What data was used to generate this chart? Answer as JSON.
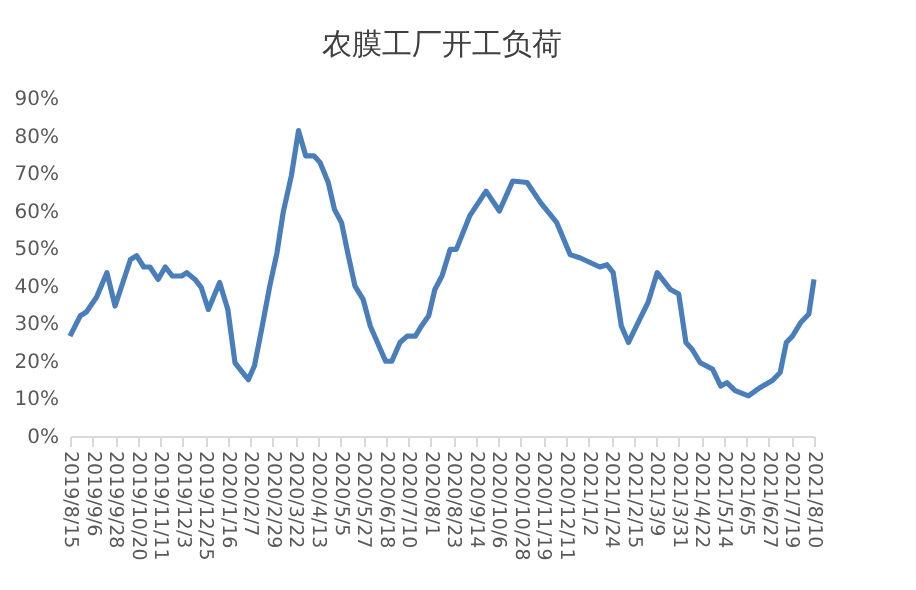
{
  "chart_data": {
    "type": "line",
    "title": "农膜工厂开工负荷",
    "x": [
      "2019-08-15",
      "2019-08-25",
      "2019-08-31",
      "2019-09-10",
      "2019-09-20",
      "2019-09-28",
      "2019-10-13",
      "2019-10-19",
      "2019-10-26",
      "2019-11-01",
      "2019-11-09",
      "2019-11-16",
      "2019-11-23",
      "2019-12-02",
      "2019-12-07",
      "2019-12-15",
      "2019-12-21",
      "2019-12-28",
      "2020-01-08",
      "2020-01-16",
      "2020-01-23",
      "2020-02-05",
      "2020-02-11",
      "2020-02-18",
      "2020-02-26",
      "2020-03-04",
      "2020-03-10",
      "2020-03-18",
      "2020-03-25",
      "2020-04-01",
      "2020-04-09",
      "2020-04-15",
      "2020-04-23",
      "2020-04-29",
      "2020-05-06",
      "2020-05-12",
      "2020-05-19",
      "2020-05-27",
      "2020-06-03",
      "2020-06-18",
      "2020-06-24",
      "2020-07-02",
      "2020-07-09",
      "2020-07-17",
      "2020-07-23",
      "2020-07-30",
      "2020-08-05",
      "2020-08-12",
      "2020-08-20",
      "2020-08-26",
      "2020-09-08",
      "2020-09-24",
      "2020-10-07",
      "2020-10-20",
      "2020-11-03",
      "2020-11-16",
      "2020-12-02",
      "2020-12-15",
      "2020-12-25",
      "2021-01-13",
      "2021-01-20",
      "2021-01-26",
      "2021-02-03",
      "2021-02-10",
      "2021-02-21",
      "2021-03-01",
      "2021-03-10",
      "2021-03-23",
      "2021-03-31",
      "2021-04-07",
      "2021-04-13",
      "2021-04-21",
      "2021-05-03",
      "2021-05-11",
      "2021-05-17",
      "2021-05-25",
      "2021-06-07",
      "2021-06-19",
      "2021-06-30",
      "2021-07-08",
      "2021-07-14",
      "2021-07-20",
      "2021-07-28",
      "2021-08-05",
      "2021-08-10"
    ],
    "series": [
      {
        "color": "#4a7ebb",
        "values": [
          26.6,
          32,
          33,
          37,
          43.5,
          34.6,
          47,
          48,
          45,
          45,
          41.7,
          45,
          42.6,
          42.6,
          43.5,
          41.7,
          39.6,
          33.7,
          40.9,
          33.7,
          19.5,
          15,
          18.7,
          28.4,
          40,
          48.8,
          59.5,
          69.3,
          81.3,
          74.6,
          74.6,
          72.8,
          67.5,
          60.4,
          56.8,
          48.8,
          40,
          36.4,
          29.3,
          19.9,
          19.9,
          24.9,
          26.6,
          26.6,
          29.3,
          32,
          39,
          42.6,
          49.7,
          49.7,
          58.6,
          65.2,
          59.9,
          67.9,
          67.5,
          62.2,
          56.8,
          48.3,
          47.4,
          45,
          45.6,
          43.5,
          29.3,
          24.9,
          31.1,
          35.5,
          43.5,
          39,
          37.8,
          24.9,
          23.1,
          19.5,
          17.8,
          13.3,
          14.2,
          12.1,
          10.7,
          13,
          14.7,
          16.9,
          24.9,
          26.6,
          30.2,
          32.5,
          41.7
        ]
      }
    ],
    "xlim": [
      "2019-08-15",
      "2021-08-10"
    ],
    "xticks": [
      {
        "value": "2019-08-15",
        "label": "2019/8/15"
      },
      {
        "value": "2019-09-06",
        "label": "2019/9/6"
      },
      {
        "value": "2019-09-28",
        "label": "2019/9/28"
      },
      {
        "value": "2019-10-20",
        "label": "2019/10/20"
      },
      {
        "value": "2019-11-11",
        "label": "2019/11/11"
      },
      {
        "value": "2019-12-03",
        "label": "2019/12/3"
      },
      {
        "value": "2019-12-25",
        "label": "2019/12/25"
      },
      {
        "value": "2020-01-16",
        "label": "2020/1/16"
      },
      {
        "value": "2020-02-07",
        "label": "2020/2/7"
      },
      {
        "value": "2020-02-29",
        "label": "2020/2/29"
      },
      {
        "value": "2020-03-22",
        "label": "2020/3/22"
      },
      {
        "value": "2020-04-13",
        "label": "2020/4/13"
      },
      {
        "value": "2020-05-05",
        "label": "2020/5/5"
      },
      {
        "value": "2020-05-27",
        "label": "2020/5/27"
      },
      {
        "value": "2020-06-18",
        "label": "2020/6/18"
      },
      {
        "value": "2020-07-10",
        "label": "2020/7/10"
      },
      {
        "value": "2020-08-01",
        "label": "2020/8/1"
      },
      {
        "value": "2020-08-23",
        "label": "2020/8/23"
      },
      {
        "value": "2020-09-14",
        "label": "2020/9/14"
      },
      {
        "value": "2020-10-06",
        "label": "2020/10/6"
      },
      {
        "value": "2020-10-28",
        "label": "2020/10/28"
      },
      {
        "value": "2020-11-19",
        "label": "2020/11/19"
      },
      {
        "value": "2020-12-11",
        "label": "2020/12/11"
      },
      {
        "value": "2021-01-02",
        "label": "2021/1/2"
      },
      {
        "value": "2021-01-24",
        "label": "2021/1/24"
      },
      {
        "value": "2021-02-15",
        "label": "2021/2/15"
      },
      {
        "value": "2021-03-09",
        "label": "2021/3/9"
      },
      {
        "value": "2021-03-31",
        "label": "2021/3/31"
      },
      {
        "value": "2021-04-22",
        "label": "2021/4/22"
      },
      {
        "value": "2021-05-14",
        "label": "2021/5/14"
      },
      {
        "value": "2021-06-05",
        "label": "2021/6/5"
      },
      {
        "value": "2021-06-27",
        "label": "2021/6/27"
      },
      {
        "value": "2021-07-19",
        "label": "2021/7/19"
      },
      {
        "value": "2021-08-10",
        "label": "2021/8/10"
      }
    ],
    "ylim": [
      0,
      90
    ],
    "yticks": [
      {
        "value": 0,
        "label": "0%"
      },
      {
        "value": 10,
        "label": "10%"
      },
      {
        "value": 20,
        "label": "20%"
      },
      {
        "value": 30,
        "label": "30%"
      },
      {
        "value": 40,
        "label": "40%"
      },
      {
        "value": 50,
        "label": "50%"
      },
      {
        "value": 60,
        "label": "60%"
      },
      {
        "value": 70,
        "label": "70%"
      },
      {
        "value": 80,
        "label": "80%"
      },
      {
        "value": 90,
        "label": "90%"
      }
    ],
    "grid": false,
    "legend": false,
    "marker": "none",
    "line_style": "solid"
  }
}
